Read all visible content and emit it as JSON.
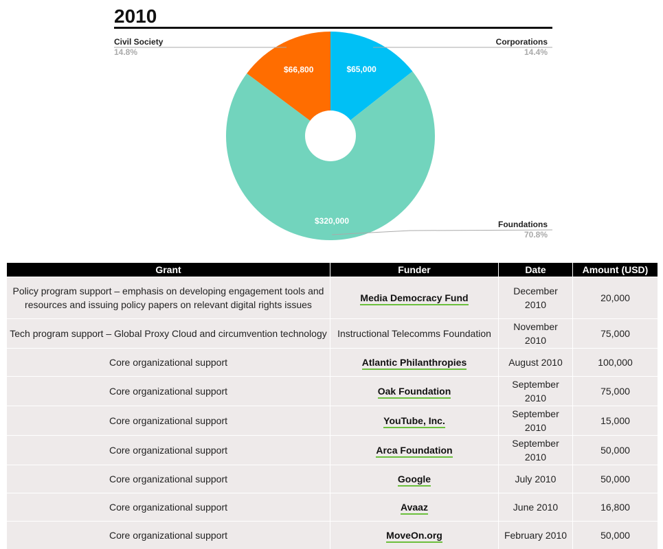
{
  "chart_data": {
    "type": "pie",
    "title": "2010",
    "slices": [
      {
        "name": "Corporations",
        "value": 65000,
        "label": "$65,000",
        "percent": "14.4%",
        "color": "#00c0f5"
      },
      {
        "name": "Foundations",
        "value": 320000,
        "label": "$320,000",
        "percent": "70.8%",
        "color": "#72d4bd"
      },
      {
        "name": "Civil Society",
        "value": 66800,
        "label": "$66,800",
        "percent": "14.8%",
        "color": "#ff6d00"
      }
    ]
  },
  "table": {
    "headers": [
      "Grant",
      "Funder",
      "Date",
      "Amount (USD)"
    ],
    "rows": [
      {
        "grant": "Policy program support – emphasis on developing engagement tools and resources and issuing policy papers on relevant digital rights issues",
        "funder": "Media Democracy Fund",
        "link": true,
        "date": "December 2010",
        "amount": "20,000"
      },
      {
        "grant": "Tech program support – Global Proxy Cloud and circumvention technology",
        "funder": "Instructional Telecomms Foundation",
        "link": false,
        "date": "November 2010",
        "amount": "75,000"
      },
      {
        "grant": "Core organizational support",
        "funder": "Atlantic Philanthropies",
        "link": true,
        "date": "August 2010",
        "amount": "100,000"
      },
      {
        "grant": "Core organizational support",
        "funder": "Oak Foundation",
        "link": true,
        "date": "September 2010",
        "amount": "75,000"
      },
      {
        "grant": "Core organizational support",
        "funder": "YouTube, Inc.",
        "link": true,
        "date": "September 2010",
        "amount": "15,000"
      },
      {
        "grant": "Core organizational support",
        "funder": "Arca Foundation",
        "link": true,
        "date": "September 2010",
        "amount": "50,000"
      },
      {
        "grant": "Core organizational support",
        "funder": "Google",
        "link": true,
        "date": "July 2010",
        "amount": "50,000"
      },
      {
        "grant": "Core organizational support",
        "funder": "Avaaz",
        "link": true,
        "date": "June 2010",
        "amount": "16,800"
      },
      {
        "grant": "Core organizational support",
        "funder": "MoveOn.org",
        "link": true,
        "date": "February 2010",
        "amount": "50,000"
      }
    ]
  }
}
